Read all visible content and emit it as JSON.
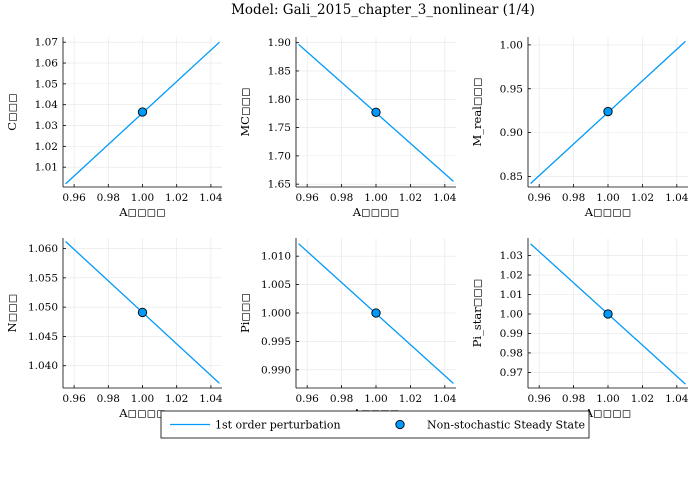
{
  "title": "Model: Gali_2015_chapter_3_nonlinear   (1/4)",
  "colors": {
    "series_line": "#009AFA",
    "steady_state_fill": "#009AFA",
    "steady_state_edge": "#000000"
  },
  "legend": {
    "line_label": "1st order perturbation",
    "marker_label": "Non-stochastic Steady State"
  },
  "chart_data": [
    {
      "type": "line",
      "xlabel": "A◻◻◻◻",
      "ylabel": "C◻◻◻",
      "xlim": [
        0.9535,
        1.0465
      ],
      "ylim": [
        1.0005,
        1.0725
      ],
      "xticks": [
        0.96,
        0.98,
        1.0,
        1.02,
        1.04
      ],
      "yticks": [
        1.01,
        1.02,
        1.03,
        1.04,
        1.05,
        1.06,
        1.07
      ],
      "x": [
        0.955,
        1.045
      ],
      "y": [
        1.002,
        1.07
      ],
      "steady_state": {
        "x": 1.0,
        "y": 1.0365
      }
    },
    {
      "type": "line",
      "xlabel": "A◻◻◻◻",
      "ylabel": "MC◻◻◻",
      "xlim": [
        0.9535,
        1.0465
      ],
      "ylim": [
        1.645,
        1.91
      ],
      "xticks": [
        0.96,
        0.98,
        1.0,
        1.02,
        1.04
      ],
      "yticks": [
        1.65,
        1.7,
        1.75,
        1.8,
        1.85,
        1.9
      ],
      "x": [
        0.955,
        1.045
      ],
      "y": [
        1.897,
        1.655
      ],
      "steady_state": {
        "x": 1.0,
        "y": 1.777
      }
    },
    {
      "type": "line",
      "xlabel": "A◻◻◻◻",
      "ylabel": "M_real◻◻◻",
      "xlim": [
        0.9535,
        1.0465
      ],
      "ylim": [
        0.838,
        1.009
      ],
      "xticks": [
        0.96,
        0.98,
        1.0,
        1.02,
        1.04
      ],
      "yticks": [
        0.85,
        0.9,
        0.95,
        1.0
      ],
      "x": [
        0.955,
        1.045
      ],
      "y": [
        0.842,
        1.004
      ],
      "steady_state": {
        "x": 1.0,
        "y": 0.924
      }
    },
    {
      "type": "line",
      "xlabel": "A◻◻◻◻",
      "ylabel": "N◻◻◻",
      "xlim": [
        0.9535,
        1.0465
      ],
      "ylim": [
        1.0362,
        1.0618
      ],
      "xticks": [
        0.96,
        0.98,
        1.0,
        1.02,
        1.04
      ],
      "yticks": [
        1.04,
        1.045,
        1.05,
        1.055,
        1.06
      ],
      "x": [
        0.955,
        1.045
      ],
      "y": [
        1.0612,
        1.037
      ],
      "steady_state": {
        "x": 1.0,
        "y": 1.0491
      }
    },
    {
      "type": "line",
      "xlabel": "A◻◻◻◻",
      "ylabel": "Pi◻◻◻",
      "xlim": [
        0.9535,
        1.0465
      ],
      "ylim": [
        0.9868,
        1.0132
      ],
      "xticks": [
        0.96,
        0.98,
        1.0,
        1.02,
        1.04
      ],
      "yticks": [
        0.99,
        0.995,
        1.0,
        1.005,
        1.01
      ],
      "x": [
        0.955,
        1.045
      ],
      "y": [
        1.0122,
        0.9876
      ],
      "steady_state": {
        "x": 1.0,
        "y": 1.0
      }
    },
    {
      "type": "line",
      "xlabel": "A◻◻◻◻",
      "ylabel": "Pi_star◻◻◻",
      "xlim": [
        0.9535,
        1.0465
      ],
      "ylim": [
        0.962,
        1.039
      ],
      "xticks": [
        0.96,
        0.98,
        1.0,
        1.02,
        1.04
      ],
      "yticks": [
        0.97,
        0.98,
        0.99,
        1.0,
        1.01,
        1.02,
        1.03
      ],
      "x": [
        0.955,
        1.045
      ],
      "y": [
        1.036,
        0.964
      ],
      "steady_state": {
        "x": 1.0,
        "y": 1.0
      }
    }
  ]
}
